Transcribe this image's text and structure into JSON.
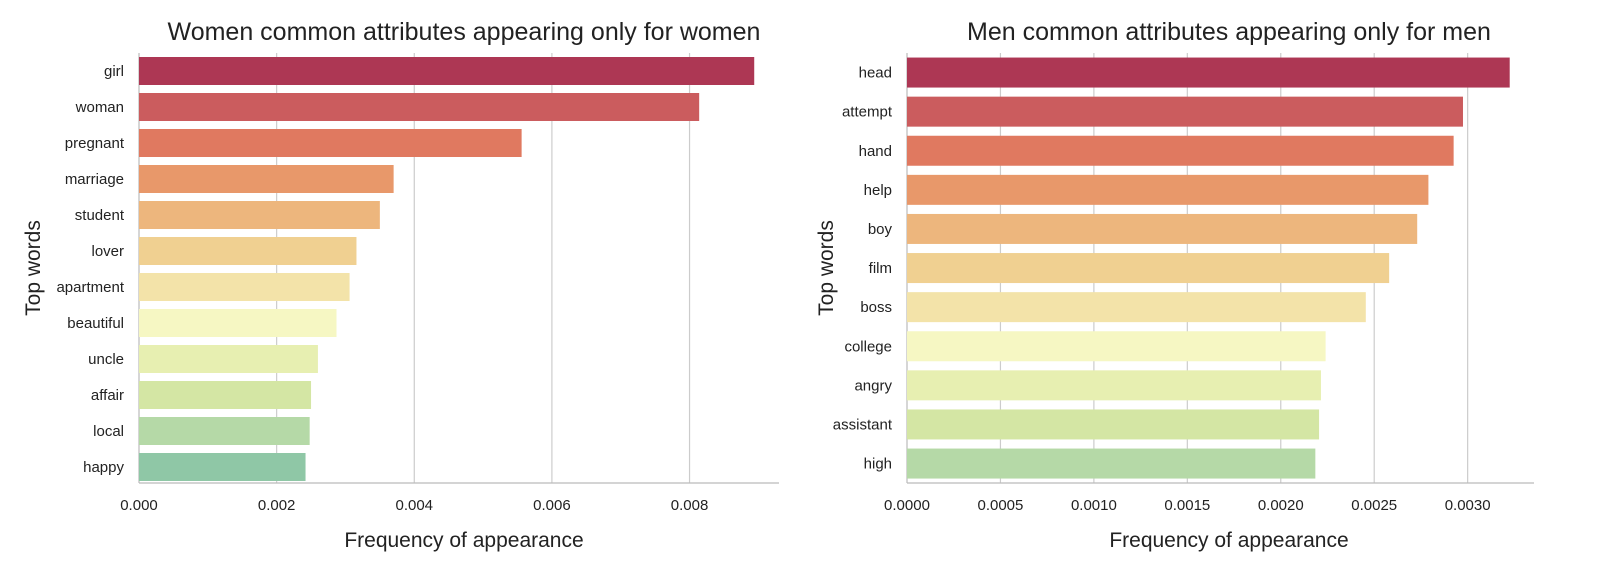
{
  "chart_data": [
    {
      "type": "bar",
      "orientation": "horizontal",
      "title": "Women common attributes appearing only for women",
      "xlabel": "Frequency of appearance",
      "ylabel": "Top words",
      "categories": [
        "girl",
        "woman",
        "pregnant",
        "marriage",
        "student",
        "lover",
        "apartment",
        "beautiful",
        "uncle",
        "affair",
        "local",
        "happy"
      ],
      "values": [
        0.00894,
        0.00814,
        0.00556,
        0.0037,
        0.0035,
        0.00316,
        0.00306,
        0.00287,
        0.0026,
        0.0025,
        0.00248,
        0.00242
      ],
      "xlim": [
        0,
        0.0093
      ],
      "xticks": [
        "0.000",
        "0.002",
        "0.004",
        "0.006",
        "0.008"
      ],
      "xtick_values": [
        0,
        0.002,
        0.004,
        0.006,
        0.008
      ],
      "grid": "vertical",
      "colors": [
        "#ad3754",
        "#cb5c5e",
        "#e07960",
        "#e8986a",
        "#edb67d",
        "#f0d091",
        "#f3e3a9",
        "#f6f7c3",
        "#e7efb1",
        "#d4e6a4",
        "#b5d9a7",
        "#8fc7a6"
      ]
    },
    {
      "type": "bar",
      "orientation": "horizontal",
      "title": "Men common attributes appearing only for men",
      "xlabel": "Frequency of appearance",
      "ylabel": "Top words",
      "categories": [
        "head",
        "attempt",
        "hand",
        "help",
        "boy",
        "film",
        "boss",
        "college",
        "angry",
        "assistant",
        "high"
      ],
      "values": [
        0.003225,
        0.002975,
        0.002925,
        0.00279,
        0.00273,
        0.00258,
        0.002455,
        0.00224,
        0.002215,
        0.002205,
        0.002185
      ],
      "xlim": [
        0,
        0.003355
      ],
      "xticks": [
        "0.0000",
        "0.0005",
        "0.0010",
        "0.0015",
        "0.0020",
        "0.0025",
        "0.0030"
      ],
      "xtick_values": [
        0,
        0.0005,
        0.001,
        0.0015,
        0.002,
        0.0025,
        0.003
      ],
      "grid": "vertical",
      "colors": [
        "#ad3754",
        "#cb5c5e",
        "#e07960",
        "#e8986a",
        "#edb67d",
        "#f0d091",
        "#f3e3a9",
        "#f6f7c3",
        "#e7efb1",
        "#d4e6a4",
        "#b5d9a7"
      ]
    }
  ]
}
